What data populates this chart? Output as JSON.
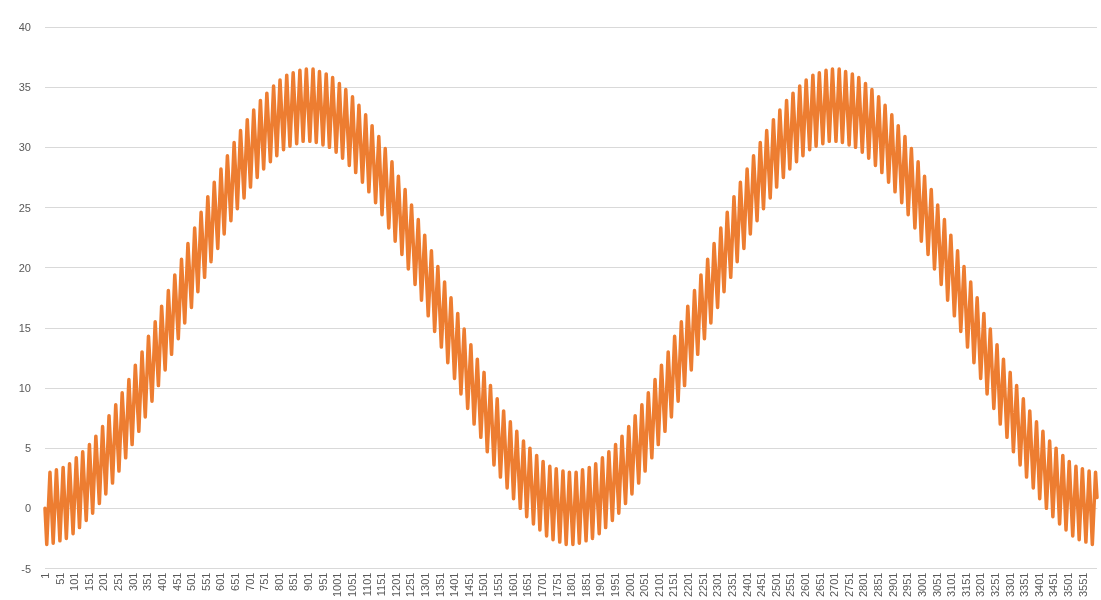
{
  "chart_data": {
    "type": "line",
    "color": "#ed7d31",
    "grid": "y",
    "marker": "none",
    "line_style": "solid",
    "xlim": [
      1,
      3600
    ],
    "xticks": [
      1,
      51,
      101,
      151,
      201,
      251,
      301,
      351,
      401,
      451,
      501,
      551,
      601,
      651,
      701,
      751,
      801,
      851,
      901,
      951,
      1001,
      1051,
      1101,
      1151,
      1201,
      1251,
      1301,
      1351,
      1401,
      1451,
      1501,
      1551,
      1601,
      1651,
      1701,
      1751,
      1801,
      1851,
      1901,
      1951,
      2001,
      2051,
      2101,
      2151,
      2201,
      2251,
      2301,
      2351,
      2401,
      2451,
      2501,
      2551,
      2601,
      2651,
      2701,
      2751,
      2801,
      2851,
      2901,
      2951,
      3001,
      3051,
      3101,
      3151,
      3201,
      3251,
      3301,
      3351,
      3401,
      3451,
      3501,
      3551
    ],
    "ylim": [
      -5,
      40
    ],
    "yticks": [
      -5,
      0,
      5,
      10,
      15,
      20,
      25,
      30,
      35,
      40
    ],
    "x": [
      1,
      7,
      18,
      29,
      40,
      52,
      63,
      74,
      85,
      97,
      108,
      119,
      130,
      142,
      153,
      164,
      175,
      187,
      198,
      209,
      220,
      232,
      243,
      254,
      265,
      277,
      288,
      299,
      310,
      322,
      333,
      344,
      355,
      367,
      378,
      389,
      400,
      412,
      423,
      434,
      445,
      457,
      468,
      479,
      490,
      502,
      513,
      524,
      535,
      547,
      558,
      569,
      580,
      592,
      603,
      614,
      625,
      637,
      648,
      659,
      670,
      682,
      693,
      704,
      715,
      727,
      738,
      749,
      760,
      772,
      783,
      794,
      805,
      817,
      828,
      839,
      850,
      862,
      873,
      884,
      895,
      907,
      918,
      929,
      940,
      952,
      963,
      974,
      985,
      997,
      1008,
      1019,
      1030,
      1042,
      1053,
      1064,
      1075,
      1087,
      1098,
      1109,
      1120,
      1132,
      1143,
      1154,
      1165,
      1177,
      1188,
      1199,
      1210,
      1222,
      1233,
      1244,
      1255,
      1267,
      1278,
      1289,
      1300,
      1312,
      1323,
      1334,
      1345,
      1357,
      1368,
      1379,
      1390,
      1402,
      1413,
      1424,
      1435,
      1447,
      1458,
      1469,
      1480,
      1492,
      1503,
      1514,
      1525,
      1537,
      1548,
      1559,
      1570,
      1582,
      1593,
      1604,
      1615,
      1627,
      1638,
      1649,
      1660,
      1672,
      1683,
      1694,
      1705,
      1717,
      1728,
      1739,
      1750,
      1762,
      1773,
      1784,
      1795,
      1807,
      1818,
      1829,
      1840,
      1852,
      1863,
      1874,
      1885,
      1897,
      1908,
      1919,
      1930,
      1942,
      1953,
      1964,
      1975,
      1987,
      1998,
      2009,
      2020,
      2032,
      2043,
      2054,
      2065,
      2077,
      2088,
      2099,
      2110,
      2122,
      2133,
      2144,
      2155,
      2167,
      2178,
      2189,
      2200,
      2212,
      2223,
      2234,
      2245,
      2257,
      2268,
      2279,
      2290,
      2302,
      2313,
      2324,
      2335,
      2347,
      2358,
      2369,
      2380,
      2392,
      2403,
      2414,
      2425,
      2437,
      2448,
      2459,
      2470,
      2482,
      2493,
      2504,
      2515,
      2527,
      2538,
      2549,
      2560,
      2572,
      2583,
      2594,
      2605,
      2617,
      2628,
      2639,
      2650,
      2662,
      2673,
      2684,
      2695,
      2707,
      2718,
      2729,
      2740,
      2752,
      2763,
      2774,
      2785,
      2797,
      2808,
      2819,
      2830,
      2842,
      2853,
      2864,
      2875,
      2887,
      2898,
      2909,
      2920,
      2932,
      2943,
      2954,
      2965,
      2977,
      2988,
      2999,
      3010,
      3022,
      3033,
      3044,
      3055,
      3067,
      3078,
      3089,
      3100,
      3112,
      3123,
      3134,
      3145,
      3157,
      3168,
      3179,
      3190,
      3202,
      3213,
      3224,
      3235,
      3247,
      3258,
      3269,
      3280,
      3292,
      3303,
      3314,
      3325,
      3337,
      3348,
      3359,
      3370,
      3382,
      3393,
      3404,
      3415,
      3427,
      3438,
      3449,
      3460,
      3472,
      3483,
      3494,
      3505,
      3517,
      3528,
      3539,
      3550,
      3562,
      3573,
      3584,
      3595,
      3600
    ],
    "values": [
      0,
      -3.0,
      3.0,
      -2.9,
      3.2,
      -2.7,
      3.4,
      -2.5,
      3.7,
      -2.1,
      4.2,
      -1.6,
      4.7,
      -1.0,
      5.3,
      -0.4,
      6.0,
      0.4,
      6.8,
      1.2,
      7.7,
      2.1,
      8.6,
      3.1,
      9.6,
      4.2,
      10.7,
      5.3,
      11.9,
      6.4,
      13.0,
      7.6,
      14.3,
      8.9,
      15.5,
      10.2,
      16.8,
      11.5,
      18.1,
      12.8,
      19.4,
      14.1,
      20.7,
      15.4,
      22.0,
      16.7,
      23.3,
      18.0,
      24.6,
      19.2,
      25.9,
      20.5,
      27.1,
      21.6,
      28.2,
      22.8,
      29.3,
      23.9,
      30.4,
      24.9,
      31.4,
      25.8,
      32.3,
      26.7,
      33.1,
      27.5,
      33.9,
      28.2,
      34.5,
      28.8,
      35.1,
      29.3,
      35.6,
      29.8,
      36.0,
      30.1,
      36.2,
      30.3,
      36.4,
      30.5,
      36.5,
      30.5,
      36.5,
      30.4,
      36.3,
      30.2,
      36.1,
      30.0,
      35.8,
      29.6,
      35.3,
      29.1,
      34.8,
      28.5,
      34.2,
      27.9,
      33.5,
      27.1,
      32.7,
      26.3,
      31.8,
      25.4,
      30.9,
      24.4,
      29.9,
      23.3,
      28.8,
      22.2,
      27.6,
      21.1,
      26.5,
      19.9,
      25.2,
      18.6,
      24.0,
      17.3,
      22.7,
      16.0,
      21.4,
      14.7,
      20.1,
      13.4,
      18.8,
      12.1,
      17.5,
      10.8,
      16.2,
      9.5,
      14.9,
      8.3,
      13.6,
      7.0,
      12.4,
      5.9,
      11.3,
      4.7,
      10.2,
      3.6,
      9.1,
      2.6,
      8.1,
      1.7,
      7.2,
      0.8,
      6.4,
      0.0,
      5.6,
      -0.7,
      5.0,
      -1.3,
      4.4,
      -1.8,
      3.9,
      -2.3,
      3.5,
      -2.6,
      3.3,
      -2.8,
      3.1,
      -3.0,
      3.0,
      -3.0,
      3.0,
      -2.9,
      3.2,
      -2.7,
      3.4,
      -2.5,
      3.7,
      -2.1,
      4.2,
      -1.6,
      4.7,
      -1.0,
      5.3,
      -0.4,
      6.0,
      0.4,
      6.8,
      1.2,
      7.7,
      2.1,
      8.6,
      3.1,
      9.6,
      4.2,
      10.7,
      5.3,
      11.9,
      6.4,
      13.0,
      7.6,
      14.3,
      8.9,
      15.5,
      10.2,
      16.8,
      11.5,
      18.1,
      12.8,
      19.4,
      14.1,
      20.7,
      15.4,
      22.0,
      16.7,
      23.3,
      18.0,
      24.6,
      19.2,
      25.9,
      20.5,
      27.1,
      21.6,
      28.2,
      22.8,
      29.3,
      23.9,
      30.4,
      24.9,
      31.4,
      25.8,
      32.3,
      26.7,
      33.1,
      27.5,
      33.9,
      28.2,
      34.5,
      28.8,
      35.1,
      29.3,
      35.6,
      29.8,
      36.0,
      30.1,
      36.2,
      30.3,
      36.4,
      30.5,
      36.5,
      30.5,
      36.5,
      30.4,
      36.3,
      30.2,
      36.1,
      30.0,
      35.8,
      29.6,
      35.3,
      29.1,
      34.8,
      28.5,
      34.2,
      27.9,
      33.5,
      27.1,
      32.7,
      26.3,
      31.8,
      25.4,
      30.9,
      24.4,
      29.9,
      23.3,
      28.8,
      22.2,
      27.6,
      21.1,
      26.5,
      19.9,
      25.2,
      18.6,
      24.0,
      17.3,
      22.7,
      16.0,
      21.4,
      14.7,
      20.1,
      13.4,
      18.8,
      12.1,
      17.5,
      10.8,
      16.2,
      9.5,
      14.9,
      8.3,
      13.6,
      7.0,
      12.4,
      5.9,
      11.3,
      4.7,
      10.2,
      3.6,
      9.1,
      2.6,
      8.1,
      1.7,
      7.2,
      0.8,
      6.4,
      0.0,
      5.6,
      -0.7,
      5.0,
      -1.3,
      4.4,
      -1.8,
      3.9,
      -2.3,
      3.5,
      -2.6,
      3.3,
      -2.8,
      3.1,
      -3.0,
      3.0,
      0.9
    ]
  }
}
